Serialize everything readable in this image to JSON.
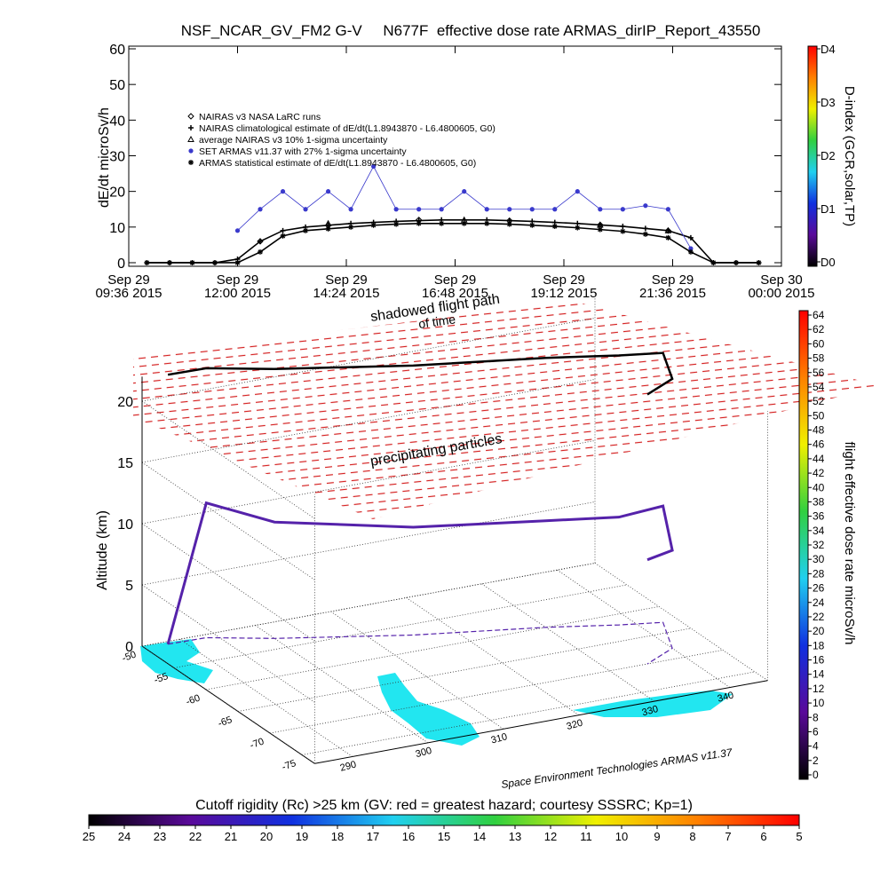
{
  "chart_data": [
    {
      "type": "line",
      "title": "NSF_NCAR_GV_FM2 G-V     N677F  effective dose rate ARMAS_dirIP_Report_43550",
      "ylabel": "dE/dt microSv/h",
      "x": [
        10.0,
        10.5,
        11.0,
        11.5,
        12.0,
        12.5,
        13.0,
        13.5,
        14.0,
        14.5,
        15.0,
        15.5,
        16.0,
        16.5,
        17.0,
        17.5,
        18.0,
        18.5,
        19.0,
        19.5,
        20.0,
        20.5,
        21.0,
        21.5,
        22.0,
        22.5,
        23.0,
        23.5
      ],
      "xlim": [
        9.6,
        24.0
      ],
      "xticks": [
        {
          "value": 9.6,
          "label": "Sep 29\n09:36 2015"
        },
        {
          "value": 12.0,
          "label": "Sep 29\n12:00 2015"
        },
        {
          "value": 14.4,
          "label": "Sep 29\n14:24 2015"
        },
        {
          "value": 16.8,
          "label": "Sep 29\n16:48 2015"
        },
        {
          "value": 19.2,
          "label": "Sep 29\n19:12 2015"
        },
        {
          "value": 21.6,
          "label": "Sep 29\n21:36 2015"
        },
        {
          "value": 24.0,
          "label": "Sep 30\n00:00 2015"
        }
      ],
      "ylim": [
        -1,
        60
      ],
      "yticks": [
        0,
        10,
        20,
        30,
        40,
        50,
        60
      ],
      "series": [
        {
          "name": "NAIRAS v3 NASA LaRC runs",
          "color": "#000000",
          "marker": "diamond",
          "values": [
            null,
            null,
            null,
            null,
            null,
            6,
            null,
            null,
            10.5,
            null,
            null,
            null,
            12,
            null,
            null,
            null,
            11.8,
            null,
            null,
            null,
            10.6,
            null,
            null,
            9,
            null,
            null,
            null,
            null
          ]
        },
        {
          "name": "NAIRAS climatological estimate of dE/dt(L1.8943870 - L6.4800605, G0)",
          "color": "#000000",
          "marker": "plus",
          "values": [
            0,
            0,
            0,
            0,
            1,
            6,
            9,
            10,
            10.5,
            11,
            11.3,
            11.6,
            11.8,
            12,
            12,
            12,
            11.8,
            11.6,
            11.3,
            11,
            10.6,
            10.2,
            9.6,
            9,
            7,
            0,
            0,
            0
          ]
        },
        {
          "name": "average NAIRAS v3 10% 1-sigma uncertainty",
          "color": "#000000",
          "marker": "triangle",
          "values": [
            null,
            null,
            null,
            null,
            null,
            null,
            null,
            null,
            11,
            null,
            null,
            null,
            null,
            null,
            12,
            null,
            null,
            null,
            null,
            null,
            10.6,
            null,
            null,
            9,
            null,
            null,
            null,
            null
          ]
        },
        {
          "name": "SET ARMAS v11.37 with 27% 1-sigma uncertainty",
          "color": "#3a3acc",
          "marker": "circle",
          "values": [
            null,
            null,
            null,
            null,
            9,
            15,
            20,
            15,
            20,
            15,
            27,
            15,
            15,
            15,
            20,
            15,
            15,
            15,
            15,
            20,
            15,
            15,
            16,
            15,
            4,
            null,
            null,
            null
          ]
        },
        {
          "name": "ARMAS statistical estimate of dE/dt(L1.8943870 - L6.4800605, G0)",
          "color": "#000000",
          "marker": "star",
          "values": [
            0,
            0,
            0,
            0,
            0,
            3,
            7.5,
            9,
            9.5,
            10,
            10.5,
            10.8,
            11,
            11,
            11,
            11,
            10.8,
            10.5,
            10.2,
            9.8,
            9.3,
            8.8,
            8,
            7,
            3,
            0,
            0,
            0
          ]
        }
      ],
      "colorbar": {
        "label": "D-index (GCR,solar,TP)",
        "lim": [
          0,
          4
        ],
        "ticks": [
          {
            "value": 0,
            "label": "D0"
          },
          {
            "value": 1,
            "label": "D1"
          },
          {
            "value": 2,
            "label": "D2"
          },
          {
            "value": 3,
            "label": "D3"
          },
          {
            "value": 4,
            "label": "D4"
          }
        ],
        "colors": [
          "#000000",
          "#5a0a9a",
          "#1030e0",
          "#20d0f0",
          "#30d040",
          "#f0f000",
          "#ff8000",
          "#ff0000"
        ]
      }
    },
    {
      "type": "track3d",
      "annotations": [
        "shadowed flight path",
        "of time",
        "precipitating particles"
      ],
      "zlabel": "Altitude (km)",
      "zlim": [
        0,
        22
      ],
      "zticks": [
        0,
        5,
        10,
        15,
        20
      ],
      "latlim": [
        -50,
        -77
      ],
      "latticks": [
        -50,
        -55,
        -60,
        -65,
        -70,
        -75
      ],
      "lonlim": [
        285,
        345
      ],
      "lonticks": [
        290,
        300,
        310,
        320,
        330,
        340
      ],
      "track": {
        "color": "#5522aa",
        "lon": [
          288,
          293,
          300,
          315,
          330,
          338,
          343,
          340,
          335
        ],
        "lat": [
          -50.5,
          -50.6,
          -53,
          -57,
          -60,
          -62,
          -63,
          -68,
          -70
        ],
        "alt": [
          0,
          11,
          9.5,
          8.8,
          8.7,
          8.8,
          9.5,
          8,
          8.5
        ]
      },
      "credit": "Space Environment Technologies ARMAS v11.37",
      "colorbar_right": {
        "label": "flight effective dose rate microSv/h",
        "lim": [
          0,
          64
        ],
        "ticks": [
          0,
          2,
          4,
          6,
          8,
          10,
          12,
          14,
          16,
          18,
          20,
          22,
          24,
          26,
          28,
          30,
          32,
          34,
          36,
          38,
          40,
          42,
          44,
          46,
          48,
          50,
          52,
          54,
          56,
          58,
          60,
          62,
          64
        ],
        "colors": [
          "#000000",
          "#5a0a9a",
          "#1030e0",
          "#20d0f0",
          "#30d040",
          "#f0f000",
          "#ff8000",
          "#ff0000"
        ]
      },
      "colorbar_bottom": {
        "title": "Cutoff rigidity (Rc) >25 km (GV: red = greatest hazard; courtesy SSSRC; Kp=1)",
        "lim": [
          25,
          5
        ],
        "ticks": [
          25,
          24,
          23,
          22,
          21,
          20,
          19,
          18,
          17,
          16,
          15,
          14,
          13,
          12,
          11,
          10,
          9,
          8,
          7,
          6,
          5
        ],
        "colors": [
          "#000000",
          "#5a0a9a",
          "#1030e0",
          "#20d0f0",
          "#30d040",
          "#f0f000",
          "#ff8000",
          "#ff0000"
        ]
      }
    }
  ]
}
